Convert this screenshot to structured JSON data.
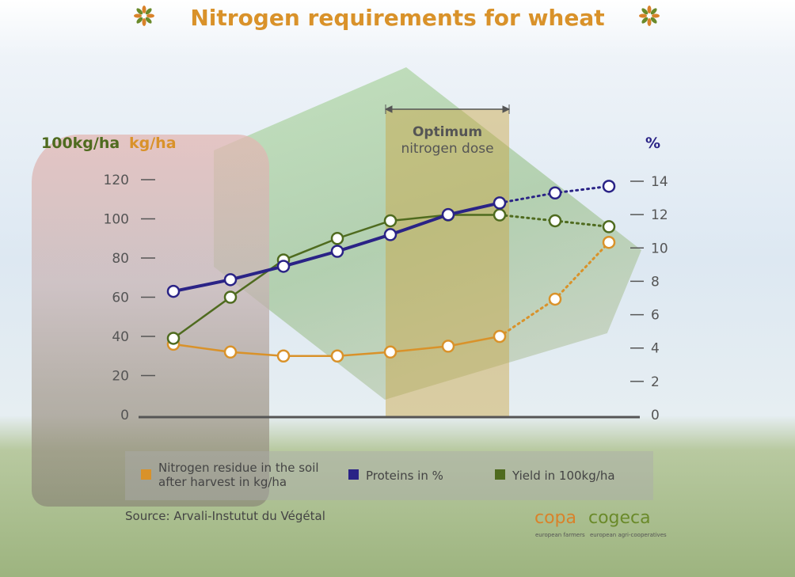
{
  "title": "Nitrogen requirements for wheat",
  "source": "Source: Arvali-Instutut du Végétal",
  "logo": {
    "left": "copa",
    "right": "cogeca",
    "left_sub": "european farmers",
    "right_sub": "european agri-cooperatives"
  },
  "colors": {
    "title": "#d9922a",
    "residue": "#d9922a",
    "proteins": "#2a2386",
    "yield": "#4f6b1f",
    "band": "#c9a441"
  },
  "chart_data": {
    "type": "line",
    "title": "Nitrogen requirements for wheat",
    "left_axis": {
      "labels": [
        "100kg/ha",
        "kg/ha"
      ],
      "range": [
        0,
        120
      ],
      "ticks": [
        "0",
        "20",
        "40",
        "60",
        "80",
        "100",
        "120"
      ]
    },
    "right_axis": {
      "label": "%",
      "range": [
        0,
        14
      ],
      "ticks": [
        "0",
        "2",
        "4",
        "6",
        "8",
        "10",
        "12",
        "14"
      ]
    },
    "x": [
      1,
      2,
      3,
      4,
      5,
      6,
      7,
      8,
      9
    ],
    "annotation": {
      "label_line1": "Optimum",
      "label_line2": "nitrogen dose",
      "x_range": [
        4.9,
        7.2
      ]
    },
    "solid_until_index": 6,
    "series": [
      {
        "name": "Nitrogen residue in the soil after harvest in kg/ha",
        "legend_line1": "Nitrogen residue in the soil",
        "legend_line2": "after harvest in kg/ha",
        "axis": "left",
        "values": [
          36,
          32,
          30,
          30,
          32,
          35,
          40,
          59,
          88
        ]
      },
      {
        "name": "Proteins in %",
        "legend_line1": "Proteins in %",
        "legend_line2": "",
        "axis": "right",
        "values": [
          7.4,
          8.1,
          8.9,
          9.8,
          10.8,
          12.0,
          12.7,
          13.3,
          13.7
        ]
      },
      {
        "name": "Yield in 100kg/ha",
        "legend_line1": "Yield in 100kg/ha",
        "legend_line2": "",
        "axis": "left",
        "values": [
          39,
          60,
          79,
          90,
          99,
          102,
          102,
          99,
          96
        ]
      }
    ]
  }
}
